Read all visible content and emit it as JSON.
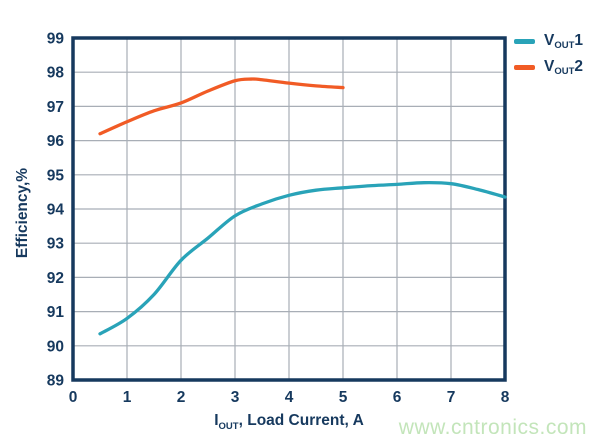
{
  "colors": {
    "navy": "#16395e",
    "grid": "#a8aeb6",
    "background": "#ffffff",
    "watermark_green": "#c3e5ba"
  },
  "y_axis": {
    "title": "Efficiency,%"
  },
  "x_axis": {
    "label_prefix": "I",
    "label_sub": "OUT",
    "label_suffix": ", Load Current, A"
  },
  "legend": {
    "items": [
      {
        "prefix": "V",
        "sub": "OUT",
        "suffix": "1",
        "color": "#29a3b8"
      },
      {
        "prefix": "V",
        "sub": "OUT",
        "suffix": "2",
        "color": "#f15b25"
      }
    ]
  },
  "watermark": {
    "text": "www.cntronics.com"
  },
  "chart_data": {
    "type": "line",
    "title": "",
    "xlabel": "IOUT, Load Current, A",
    "ylabel": "Efficiency,%",
    "xlim": [
      0,
      8
    ],
    "ylim": [
      89,
      99
    ],
    "x_ticks": [
      0,
      1,
      2,
      3,
      4,
      5,
      6,
      7,
      8
    ],
    "y_ticks": [
      89,
      90,
      91,
      92,
      93,
      94,
      95,
      96,
      97,
      98,
      99
    ],
    "grid": true,
    "legend_position": "outside-top-right",
    "series": [
      {
        "name": "VOUT1",
        "color": "#29a3b8",
        "points": [
          [
            0.5,
            90.35
          ],
          [
            1,
            90.8
          ],
          [
            1.5,
            91.5
          ],
          [
            2,
            92.5
          ],
          [
            2.5,
            93.15
          ],
          [
            3,
            93.8
          ],
          [
            3.5,
            94.15
          ],
          [
            4,
            94.4
          ],
          [
            4.5,
            94.55
          ],
          [
            5,
            94.62
          ],
          [
            5.5,
            94.68
          ],
          [
            6,
            94.72
          ],
          [
            6.5,
            94.77
          ],
          [
            7,
            94.74
          ],
          [
            7.5,
            94.57
          ],
          [
            8,
            94.35
          ]
        ]
      },
      {
        "name": "VOUT2",
        "color": "#f15b25",
        "points": [
          [
            0.5,
            96.2
          ],
          [
            1,
            96.55
          ],
          [
            1.5,
            96.87
          ],
          [
            2,
            97.1
          ],
          [
            2.5,
            97.45
          ],
          [
            3,
            97.75
          ],
          [
            3.3,
            97.8
          ],
          [
            3.5,
            97.78
          ],
          [
            4,
            97.68
          ],
          [
            4.5,
            97.6
          ],
          [
            5,
            97.55
          ]
        ]
      }
    ]
  }
}
